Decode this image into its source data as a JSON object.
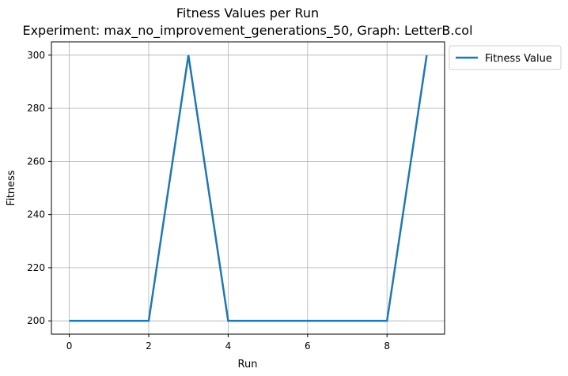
{
  "chart_data": {
    "type": "line",
    "title": "Fitness Values per Run",
    "subtitle": "Experiment: max_no_improvement_generations_50, Graph: LetterB.col",
    "xlabel": "Run",
    "ylabel": "Fitness",
    "x": [
      0,
      1,
      2,
      3,
      4,
      5,
      6,
      7,
      8,
      9
    ],
    "series": [
      {
        "name": "Fitness Value",
        "values": [
          200,
          200,
          200,
          300,
          200,
          200,
          200,
          200,
          200,
          300
        ],
        "color": "#1f77b4"
      }
    ],
    "xlim": [
      -0.45,
      9.45
    ],
    "ylim": [
      195,
      305
    ],
    "xticks": [
      0,
      2,
      4,
      6,
      8
    ],
    "yticks": [
      200,
      220,
      240,
      260,
      280,
      300
    ],
    "grid": true,
    "legend": "upper-left outside plot, right side"
  }
}
